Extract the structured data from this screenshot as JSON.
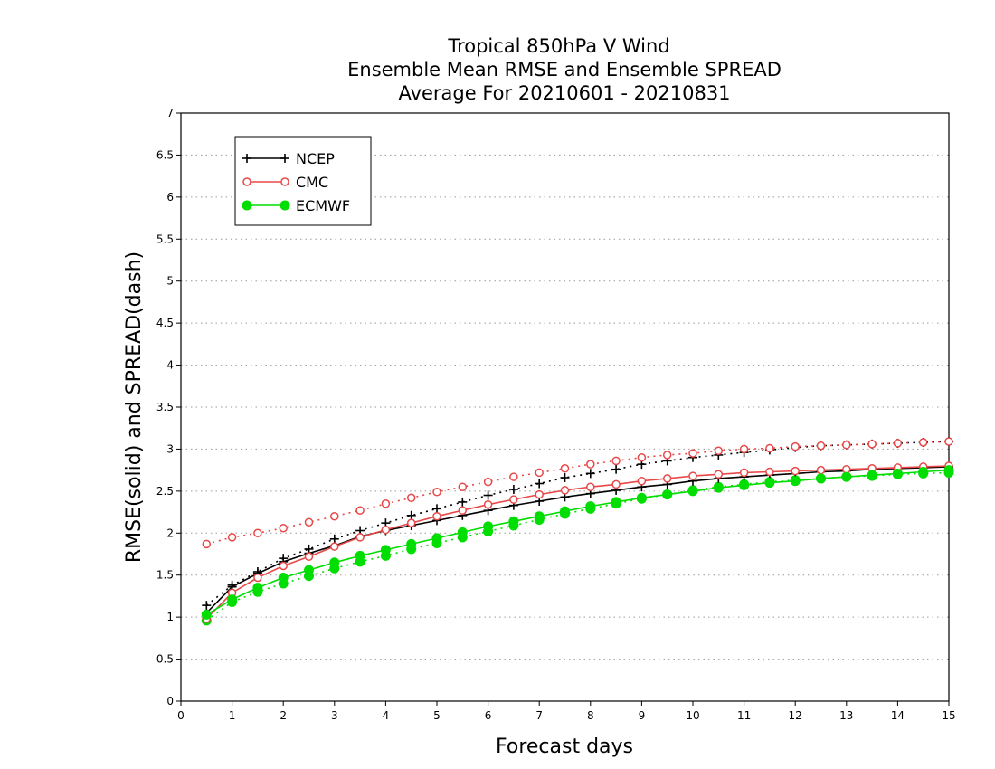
{
  "chart_data": {
    "type": "line",
    "title_lines": [
      "Tropical 850hPa V Wind",
      "Ensemble Mean RMSE and Ensemble SPREAD",
      "Average For 20210601 - 20210831"
    ],
    "xlabel": "Forecast days",
    "ylabel": "RMSE(solid) and SPREAD(dash)",
    "xlim": [
      0,
      15
    ],
    "ylim": [
      0,
      7
    ],
    "x_ticks": [
      "0",
      "1",
      "2",
      "3",
      "4",
      "5",
      "6",
      "7",
      "8",
      "9",
      "10",
      "11",
      "12",
      "13",
      "14",
      "15"
    ],
    "y_ticks": [
      "0",
      "0.5",
      "1",
      "1.5",
      "2",
      "2.5",
      "3",
      "3.5",
      "4",
      "4.5",
      "5",
      "5.5",
      "6",
      "6.5",
      "7"
    ],
    "grid": "horizontal-dotted",
    "legend_position": "top-left",
    "x": [
      0.5,
      1,
      1.5,
      2,
      2.5,
      3,
      3.5,
      4,
      4.5,
      5,
      5.5,
      6,
      6.5,
      7,
      7.5,
      8,
      8.5,
      9,
      9.5,
      10,
      10.5,
      11,
      11.5,
      12,
      12.5,
      13,
      13.5,
      14,
      14.5,
      15
    ],
    "series": [
      {
        "name": "NCEP",
        "color": "#000000",
        "marker": "plus",
        "rmse": [
          1.05,
          1.36,
          1.52,
          1.66,
          1.76,
          1.85,
          1.96,
          2.03,
          2.09,
          2.15,
          2.21,
          2.27,
          2.33,
          2.38,
          2.43,
          2.47,
          2.51,
          2.55,
          2.58,
          2.62,
          2.65,
          2.67,
          2.69,
          2.71,
          2.73,
          2.74,
          2.76,
          2.77,
          2.78,
          2.79
        ],
        "spread": [
          1.14,
          1.38,
          1.54,
          1.7,
          1.81,
          1.93,
          2.03,
          2.12,
          2.21,
          2.29,
          2.37,
          2.45,
          2.52,
          2.59,
          2.66,
          2.71,
          2.76,
          2.82,
          2.86,
          2.9,
          2.93,
          2.96,
          2.99,
          3.02,
          3.04,
          3.05,
          3.06,
          3.07,
          3.08,
          3.09
        ]
      },
      {
        "name": "CMC",
        "color": "#e84848",
        "marker": "open-circle",
        "rmse": [
          0.98,
          1.29,
          1.47,
          1.61,
          1.72,
          1.84,
          1.95,
          2.04,
          2.12,
          2.2,
          2.27,
          2.34,
          2.4,
          2.46,
          2.51,
          2.55,
          2.58,
          2.62,
          2.65,
          2.68,
          2.7,
          2.72,
          2.73,
          2.74,
          2.75,
          2.76,
          2.77,
          2.78,
          2.79,
          2.8
        ],
        "spread": [
          1.87,
          1.95,
          2.0,
          2.06,
          2.13,
          2.2,
          2.27,
          2.35,
          2.42,
          2.49,
          2.55,
          2.61,
          2.67,
          2.72,
          2.77,
          2.82,
          2.86,
          2.9,
          2.93,
          2.95,
          2.98,
          3.0,
          3.01,
          3.03,
          3.04,
          3.05,
          3.06,
          3.07,
          3.08,
          3.09
        ]
      },
      {
        "name": "ECMWF",
        "color": "#00dd00",
        "marker": "filled-circle",
        "rmse": [
          1.03,
          1.21,
          1.35,
          1.47,
          1.56,
          1.65,
          1.73,
          1.8,
          1.87,
          1.94,
          2.01,
          2.08,
          2.14,
          2.2,
          2.26,
          2.32,
          2.37,
          2.42,
          2.46,
          2.5,
          2.54,
          2.57,
          2.6,
          2.62,
          2.65,
          2.67,
          2.69,
          2.71,
          2.73,
          2.75
        ],
        "spread": [
          0.96,
          1.18,
          1.3,
          1.4,
          1.49,
          1.58,
          1.66,
          1.73,
          1.81,
          1.88,
          1.95,
          2.02,
          2.09,
          2.16,
          2.23,
          2.29,
          2.35,
          2.41,
          2.46,
          2.51,
          2.55,
          2.58,
          2.61,
          2.63,
          2.65,
          2.67,
          2.68,
          2.7,
          2.71,
          2.72
        ]
      }
    ]
  }
}
